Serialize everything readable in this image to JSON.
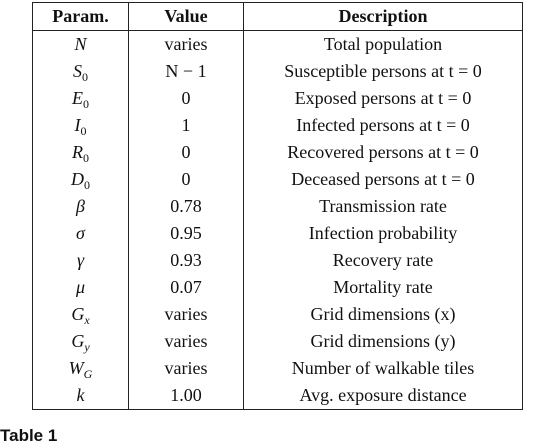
{
  "table": {
    "header": [
      "Param.",
      "Value",
      "Description"
    ],
    "rows": [
      {
        "param": {
          "symbol": "N"
        },
        "value": "varies",
        "description": "Total population"
      },
      {
        "param": {
          "symbol": "S",
          "sub": "0"
        },
        "value": "N − 1",
        "description": "Susceptible persons at t = 0"
      },
      {
        "param": {
          "symbol": "E",
          "sub": "0"
        },
        "value": "0",
        "description": "Exposed persons at t = 0"
      },
      {
        "param": {
          "symbol": "I",
          "sub": "0"
        },
        "value": "1",
        "description": "Infected persons at t = 0"
      },
      {
        "param": {
          "symbol": "R",
          "sub": "0"
        },
        "value": "0",
        "description": "Recovered persons at t = 0"
      },
      {
        "param": {
          "symbol": "D",
          "sub": "0"
        },
        "value": "0",
        "description": "Deceased persons at t = 0"
      },
      {
        "param": {
          "symbol": "β"
        },
        "value": "0.78",
        "description": "Transmission rate"
      },
      {
        "param": {
          "symbol": "σ"
        },
        "value": "0.95",
        "description": "Infection probability"
      },
      {
        "param": {
          "symbol": "γ"
        },
        "value": "0.93",
        "description": "Recovery rate"
      },
      {
        "param": {
          "symbol": "μ"
        },
        "value": "0.07",
        "description": "Mortality rate"
      },
      {
        "param": {
          "symbol": "G",
          "sub": "x"
        },
        "value": "varies",
        "description": "Grid dimensions (x)"
      },
      {
        "param": {
          "symbol": "G",
          "sub": "y"
        },
        "value": "varies",
        "description": "Grid dimensions (y)"
      },
      {
        "param": {
          "symbol": "W",
          "sub": "G"
        },
        "value": "varies",
        "description": "Number of walkable tiles"
      },
      {
        "param": {
          "symbol": "k"
        },
        "value": "1.00",
        "description": "Avg. exposure distance"
      }
    ],
    "caption": "Table 1"
  }
}
